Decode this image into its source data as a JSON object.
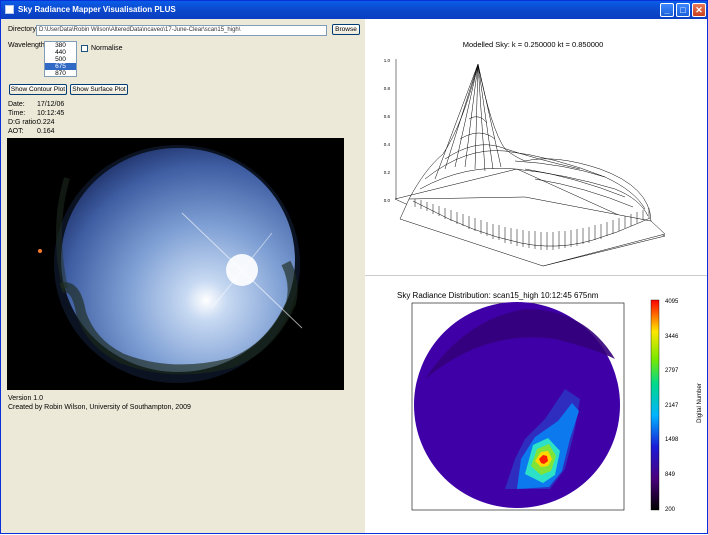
{
  "window": {
    "title": "Sky Radiance Mapper Visualisation PLUS",
    "minimize_glyph": "_",
    "maximize_glyph": "□",
    "close_glyph": "✕"
  },
  "form": {
    "directory_label": "Directory:",
    "directory_value": "D:\\UserData\\Robin Wilson\\AlteredData\\ncaveo\\17-June-Clear\\scan15_high\\",
    "browse_label": "Browse",
    "wavelength_label": "Wavelength",
    "wavelengths": [
      "380",
      "440",
      "500",
      "675",
      "870"
    ],
    "selected_wavelength": "675",
    "normalise_label": "Normalise",
    "normalise_checked": false,
    "contour_button": "Show Contour Plot",
    "surface_button": "Show Surface Plot"
  },
  "info": {
    "date_label": "Date:",
    "date_value": "17/12/06",
    "time_label": "Time:",
    "time_value": "10:12:45",
    "dg_label": "D:G ratio:",
    "dg_value": "0.224",
    "aot_label": "AOT:",
    "aot_value": "0.164"
  },
  "footer": {
    "version": "Version 1.0",
    "credit": "Created by Robin Wilson, University of Southampton, 2009"
  },
  "surface_plot": {
    "title": "Modelled Sky:  k = 0.250000  kt = 0.850000",
    "z_ticks": [
      "1.0",
      "0.8",
      "0.6",
      "0.4",
      "0.2",
      "0.0"
    ]
  },
  "contour_plot": {
    "title": "Sky Radiance Distribution: scan15_high 10:12:45   675nm",
    "colorbar_label": "Digital Number",
    "colorbar_ticks": [
      "4095",
      "3446",
      "2797",
      "2147",
      "1498",
      "849",
      "200"
    ]
  },
  "colors": {
    "titlebar": "#0a5ce8",
    "selection": "#316ac5",
    "panel": "#ece9d8"
  },
  "icons": {
    "app": "window-icon",
    "minimize": "minimize-icon",
    "maximize": "maximize-icon",
    "close": "close-icon"
  }
}
